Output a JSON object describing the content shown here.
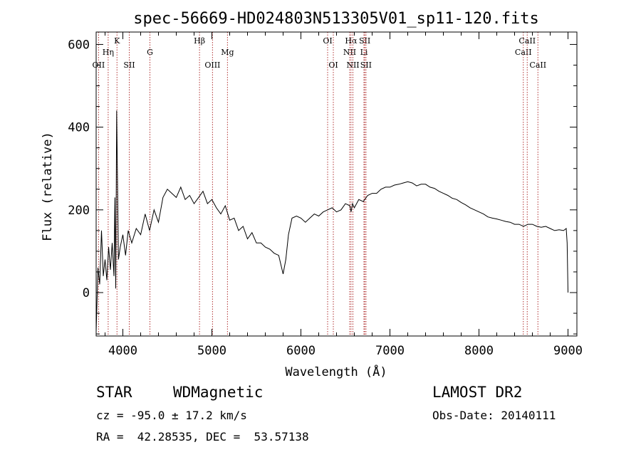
{
  "chart_data": {
    "type": "line",
    "title": "spec-56669-HD024803N513305V01_sp11-120.fits",
    "xlabel": "Wavelength (Å)",
    "ylabel": "Flux (relative)",
    "xlim": [
      3700,
      9100
    ],
    "ylim": [
      -105,
      630
    ],
    "x_ticks": [
      4000,
      5000,
      6000,
      7000,
      8000,
      9000
    ],
    "y_ticks": [
      0,
      200,
      400,
      600
    ],
    "series": [
      {
        "x": [
          3700,
          3720,
          3740,
          3760,
          3780,
          3800,
          3820,
          3840,
          3860,
          3880,
          3900,
          3910,
          3920,
          3930,
          3950,
          3970,
          4000,
          4030,
          4060,
          4100,
          4150,
          4200,
          4250,
          4300,
          4350,
          4400,
          4450,
          4500,
          4550,
          4600,
          4650,
          4700,
          4750,
          4800,
          4850,
          4900,
          4950,
          5000,
          5050,
          5100,
          5150,
          5200,
          5250,
          5300,
          5350,
          5400,
          5450,
          5500,
          5550,
          5600,
          5650,
          5700,
          5750,
          5800,
          5830,
          5860,
          5900,
          5950,
          6000,
          6050,
          6100,
          6150,
          6200,
          6250,
          6300,
          6350,
          6400,
          6450,
          6500,
          6550,
          6563,
          6580,
          6600,
          6650,
          6700,
          6750,
          6800,
          6850,
          6900,
          6950,
          7000,
          7050,
          7100,
          7150,
          7200,
          7250,
          7300,
          7350,
          7400,
          7450,
          7500,
          7550,
          7600,
          7650,
          7700,
          7750,
          7800,
          7850,
          7900,
          7950,
          8000,
          8050,
          8100,
          8150,
          8200,
          8250,
          8300,
          8350,
          8400,
          8450,
          8500,
          8550,
          8600,
          8650,
          8700,
          8750,
          8800,
          8850,
          8900,
          8950,
          8980,
          8990,
          9000
        ],
        "y": [
          -95,
          60,
          20,
          150,
          40,
          80,
          30,
          110,
          55,
          120,
          40,
          230,
          10,
          440,
          80,
          110,
          140,
          90,
          150,
          120,
          155,
          140,
          190,
          150,
          200,
          170,
          230,
          250,
          240,
          230,
          255,
          225,
          235,
          215,
          230,
          245,
          215,
          225,
          205,
          190,
          210,
          175,
          180,
          150,
          160,
          130,
          145,
          120,
          120,
          110,
          105,
          95,
          90,
          45,
          80,
          140,
          180,
          185,
          180,
          170,
          180,
          190,
          185,
          195,
          200,
          205,
          195,
          200,
          215,
          210,
          195,
          215,
          205,
          225,
          220,
          235,
          240,
          240,
          250,
          255,
          255,
          260,
          262,
          265,
          268,
          265,
          258,
          262,
          262,
          255,
          252,
          245,
          240,
          235,
          228,
          225,
          218,
          212,
          205,
          200,
          195,
          190,
          183,
          180,
          178,
          175,
          172,
          170,
          165,
          165,
          160,
          165,
          165,
          160,
          158,
          160,
          155,
          150,
          152,
          150,
          155,
          120,
          0
        ]
      }
    ],
    "spectral_lines": [
      {
        "label": "OII",
        "wavelength": 3727,
        "row": 3
      },
      {
        "label": "Hη",
        "wavelength": 3835,
        "row": 2
      },
      {
        "label": "K",
        "wavelength": 3934,
        "row": 1
      },
      {
        "label": "SII",
        "wavelength": 4072,
        "row": 3
      },
      {
        "label": "G",
        "wavelength": 4304,
        "row": 2
      },
      {
        "label": "Hβ",
        "wavelength": 4861,
        "row": 1
      },
      {
        "label": "OIII",
        "wavelength": 5007,
        "row": 3
      },
      {
        "label": "Mg",
        "wavelength": 5175,
        "row": 2
      },
      {
        "label": "OI",
        "wavelength": 6300,
        "row": 1
      },
      {
        "label": "OI",
        "wavelength": 6364,
        "row": 3
      },
      {
        "label": "NII",
        "wavelength": 6548,
        "row": 2
      },
      {
        "label": "Hα",
        "wavelength": 6563,
        "row": 1
      },
      {
        "label": "NII",
        "wavelength": 6584,
        "row": 3
      },
      {
        "label": "SII",
        "wavelength": 6717,
        "row": 1
      },
      {
        "label": "Li",
        "wavelength": 6708,
        "row": 2
      },
      {
        "label": "SII",
        "wavelength": 6731,
        "row": 3
      },
      {
        "label": "CaII",
        "wavelength": 8498,
        "row": 2
      },
      {
        "label": "CaII",
        "wavelength": 8542,
        "row": 1
      },
      {
        "label": "CaII",
        "wavelength": 8662,
        "row": 3
      }
    ],
    "grid": false,
    "legend": "none"
  },
  "info": {
    "object_class": "STAR",
    "subclass": "WDMagnetic",
    "survey": "LAMOST DR2",
    "cz": "cz = -95.0 ± 17.2 km/s",
    "obs_date": "Obs-Date: 20140111",
    "coords": "RA =  42.28535, DEC =  53.57138"
  }
}
